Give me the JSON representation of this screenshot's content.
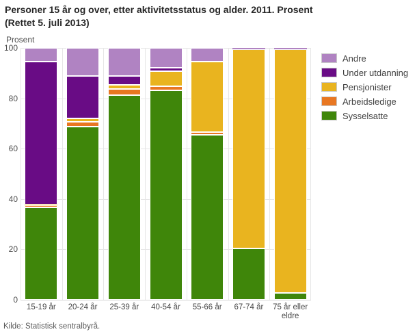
{
  "header": {
    "title_line1": "Personer 15 år og over, etter aktivitetsstatus og alder. 2011. Prosent",
    "title_line2": "(Rettet 5. juli 2013)"
  },
  "axis": {
    "y_unit_label": "Prosent"
  },
  "source": {
    "text": "Kilde: Statistisk sentralbyrå."
  },
  "colors": {
    "sysselsatte": "#3f860a",
    "arbeidsledige": "#e87722",
    "pensjonister": "#e9b41f",
    "under_utdanning": "#690c85",
    "andre": "#b083c2",
    "gridline": "#e6e6e6",
    "title_text": "#262626",
    "axis_text": "#4d4d4d"
  },
  "chart_data": {
    "type": "bar",
    "variant": "stacked-column-percent",
    "title": "Personer 15 år og over, etter aktivitetsstatus og alder. 2011. Prosent (Rettet 5. juli 2013)",
    "ylabel": "Prosent",
    "xlabel": "",
    "ylim": [
      0,
      100
    ],
    "y_ticks": [
      0,
      20,
      40,
      60,
      80,
      100
    ],
    "grid": true,
    "legend_position": "right",
    "categories": [
      "15-19 år",
      "20-24 år",
      "25-39 år",
      "40-54 år",
      "55-66 år",
      "67-74 år",
      "75 år eller eldre"
    ],
    "stack_order_note": "series listed bottom-to-top of stack; legend shown in reverse order",
    "series": [
      {
        "name": "Sysselsatte",
        "color_key": "sysselsatte",
        "values": [
          36.6,
          68.7,
          81.3,
          83.1,
          65.5,
          20.3,
          2.6
        ]
      },
      {
        "name": "Arbeidsledige",
        "color_key": "arbeidsledige",
        "values": [
          0.8,
          2.0,
          2.3,
          1.6,
          1.0,
          0,
          0
        ]
      },
      {
        "name": "Pensjonister",
        "color_key": "pensjonister",
        "values": [
          0.3,
          1.4,
          1.6,
          6.0,
          28.1,
          79.2,
          96.9
        ]
      },
      {
        "name": "Under utdanning",
        "color_key": "under_utdanning",
        "values": [
          56.9,
          16.8,
          3.7,
          1.4,
          0,
          0,
          0
        ]
      },
      {
        "name": "Andre",
        "color_key": "andre",
        "values": [
          5.4,
          11.1,
          11.1,
          7.9,
          5.4,
          0.5,
          0.5
        ]
      }
    ]
  }
}
